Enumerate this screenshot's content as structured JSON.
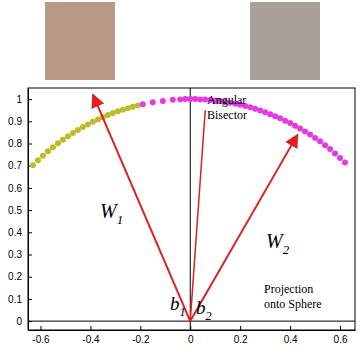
{
  "chart_data": {
    "type": "scatter",
    "xlim": [
      -0.65,
      0.66
    ],
    "ylim": [
      -0.04,
      1.05
    ],
    "xticks": [
      -0.6,
      -0.4,
      -0.2,
      0,
      0.2,
      0.4,
      0.6
    ],
    "yticks": [
      0,
      0.1,
      0.2,
      0.3,
      0.4,
      0.5,
      0.6,
      0.7,
      0.8,
      0.9,
      1
    ],
    "grid": false,
    "marker": "circle",
    "origin": {
      "x": 0,
      "y": 0
    },
    "series": [
      {
        "color": "#bcbc2a",
        "x": [
          -0.63,
          -0.61,
          -0.59,
          -0.57,
          -0.55,
          -0.53,
          -0.51,
          -0.49,
          -0.47,
          -0.45,
          -0.43,
          -0.41,
          -0.39,
          -0.37,
          -0.35,
          -0.33,
          -0.31,
          -0.29,
          -0.27,
          -0.25,
          -0.23,
          -0.21
        ],
        "values": [
          0.702,
          0.725,
          0.745,
          0.765,
          0.783,
          0.801,
          0.817,
          0.833,
          0.847,
          0.861,
          0.874,
          0.886,
          0.898,
          0.908,
          0.918,
          0.928,
          0.937,
          0.945,
          0.952,
          0.959,
          0.966,
          0.971
        ]
      },
      {
        "color": "#e23be2",
        "x": [
          -0.19,
          -0.15,
          -0.11,
          -0.07,
          -0.04,
          -0.02,
          0,
          0.02,
          0.04,
          0.06,
          0.08,
          0.1,
          0.12,
          0.14,
          0.16,
          0.18,
          0.2,
          0.22,
          0.24,
          0.26,
          0.28,
          0.3,
          0.32,
          0.34,
          0.36,
          0.38,
          0.4,
          0.42,
          0.44,
          0.46,
          0.48,
          0.5,
          0.52,
          0.54,
          0.56,
          0.58,
          0.6,
          0.62
        ],
        "values": [
          0.977,
          0.986,
          0.992,
          0.997,
          0.998,
          1,
          1,
          1,
          0.998,
          0.998,
          0.996,
          0.994,
          0.991,
          0.987,
          0.984,
          0.979,
          0.974,
          0.969,
          0.963,
          0.956,
          0.949,
          0.941,
          0.932,
          0.923,
          0.914,
          0.903,
          0.892,
          0.88,
          0.868,
          0.854,
          0.84,
          0.825,
          0.81,
          0.792,
          0.775,
          0.755,
          0.735,
          0.714
        ]
      }
    ],
    "arrows": [
      {
        "x": -0.39,
        "y": 1.02,
        "label": "W",
        "subscript": "1"
      },
      {
        "x": 0.43,
        "y": 0.84,
        "label": "W",
        "subscript": "2"
      }
    ],
    "bisector": {
      "x": 0.06,
      "y": 0.95,
      "label": [
        "Angular",
        "Bisector"
      ]
    },
    "bias_labels": [
      {
        "label": "b",
        "subscript": "1"
      },
      {
        "label": "b",
        "subscript": "2"
      }
    ],
    "annotations": [
      {
        "text": [
          "Projection",
          "onto Sphere"
        ]
      }
    ]
  }
}
